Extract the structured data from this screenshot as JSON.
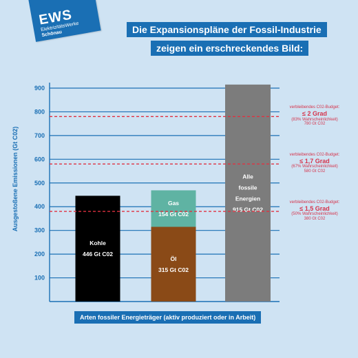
{
  "logo": {
    "main": "EWS",
    "sub": "ElektrizitätsWerke",
    "sub2": "Schönau"
  },
  "title": {
    "line1": "Die Expansionspläne der Fossil-Industrie",
    "line2": "zeigen ein erschreckendes Bild:"
  },
  "colors": {
    "background": "#cfe3f3",
    "accent": "#1a6fb4",
    "budget_line": "#e03040",
    "kohle": "#000000",
    "oel": "#8a4a17",
    "gas": "#5fb3a3",
    "alle": "#7c7c7c"
  },
  "chart_data": {
    "type": "bar",
    "xlabel": "Arten fossiler Energieträger (aktiv produziert oder in Arbeit)",
    "ylabel": "Ausgestoßene Emissionen (Gt C02)",
    "ylim": [
      0,
      900
    ],
    "yticks": [
      100,
      200,
      300,
      400,
      500,
      600,
      700,
      800,
      900
    ],
    "grid": true,
    "bars": [
      {
        "category": "Kohle",
        "segments": [
          {
            "label_lines": [
              "Kohle",
              "446 Gt C02"
            ],
            "value": 446,
            "color": "#000000"
          }
        ]
      },
      {
        "category": "Öl + Gas",
        "segments": [
          {
            "label_lines": [
              "Öl",
              "315 Gt C02"
            ],
            "value": 315,
            "color": "#8a4a17"
          },
          {
            "label_lines": [
              "Gas",
              "154 Gt C02"
            ],
            "value": 154,
            "color": "#5fb3a3"
          }
        ]
      },
      {
        "category": "Alle fossile Energien",
        "segments": [
          {
            "label_lines": [
              "Alle",
              "fossile",
              "Energien",
              "915 Gt C02"
            ],
            "value": 915,
            "color": "#7c7c7c"
          }
        ]
      }
    ],
    "reference_lines": [
      {
        "value": 780,
        "head": "verbleibendes C02-Budget:",
        "degree": "≤ 2 Grad",
        "note": "(83% Wahrscheinlichkeit)",
        "amount": "780 Gt C02"
      },
      {
        "value": 580,
        "head": "verbleibendes C02-Budget:",
        "degree": "≤ 1,7 Grad",
        "note": "(67% Wahrscheinlichkeit)",
        "amount": "580 Gt C02"
      },
      {
        "value": 380,
        "head": "verbleibendes C02-Budget:",
        "degree": "≤ 1,5 Grad",
        "note": "(50% Wahrscheinlichkeit)",
        "amount": "380 Gt C02"
      }
    ]
  }
}
